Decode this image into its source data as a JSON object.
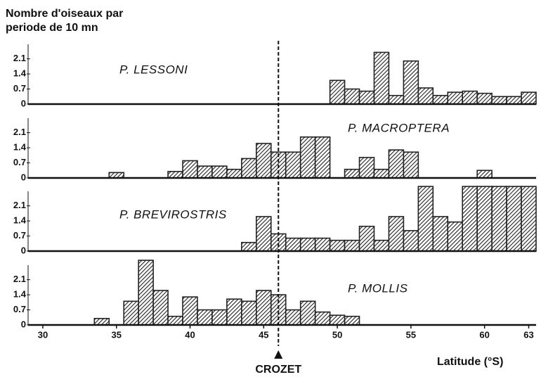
{
  "chart_data": [
    {
      "type": "histogram",
      "title": [
        "Nombre d'oiseaux par",
        "periode de 10 mn"
      ],
      "label": "P. LESSONI",
      "bins": [
        33.5,
        34.5,
        35.5,
        36.5,
        37.5,
        38.5,
        39.5,
        40.5,
        41.5,
        42.5,
        43.5,
        44.5,
        45.5,
        46.5,
        47.5,
        48.5,
        49.5,
        50.5,
        51.5,
        52.5,
        53.5,
        54.5,
        55.5,
        56.5,
        57.5,
        58.5,
        59.5,
        60.5,
        61.5,
        62.5,
        63.5
      ],
      "values": [
        0,
        0,
        0,
        0,
        0,
        0,
        0,
        0,
        0,
        0,
        0,
        0,
        0,
        0,
        0,
        0,
        1.1,
        0.7,
        0.6,
        2.4,
        0.4,
        2.0,
        0.75,
        0.4,
        0.55,
        0.6,
        0.5,
        0.35,
        0.35,
        0.55
      ],
      "color": "#222222",
      "xlim": [
        29,
        63.5
      ],
      "ylim": [
        0,
        3.1
      ],
      "yticks": [
        0,
        0.7,
        1.4,
        2.1
      ]
    },
    {
      "type": "histogram",
      "label": "P. MACROPTERA",
      "bins": [
        33.5,
        34.5,
        35.5,
        36.5,
        37.5,
        38.5,
        39.5,
        40.5,
        41.5,
        42.5,
        43.5,
        44.5,
        45.5,
        46.5,
        47.5,
        48.5,
        49.5,
        50.5,
        51.5,
        52.5,
        53.5,
        54.5,
        55.5,
        56.5,
        57.5,
        58.5,
        59.5,
        60.5,
        61.5,
        62.5,
        63.5
      ],
      "values": [
        0,
        0.25,
        0,
        0,
        0,
        0.3,
        0.8,
        0.55,
        0.55,
        0.4,
        0.9,
        1.6,
        1.2,
        1.2,
        1.9,
        1.9,
        0,
        0.4,
        0.95,
        0.4,
        1.3,
        1.2,
        0,
        0,
        0,
        0,
        0.35,
        0,
        0,
        0
      ],
      "color": "#222222",
      "xlim": [
        29,
        63.5
      ],
      "ylim": [
        0,
        3.1
      ],
      "yticks": [
        0,
        0.7,
        1.4,
        2.1
      ]
    },
    {
      "type": "histogram",
      "label": "P. BREVIROSTRIS",
      "bins": [
        33.5,
        34.5,
        35.5,
        36.5,
        37.5,
        38.5,
        39.5,
        40.5,
        41.5,
        42.5,
        43.5,
        44.5,
        45.5,
        46.5,
        47.5,
        48.5,
        49.5,
        50.5,
        51.5,
        52.5,
        53.5,
        54.5,
        55.5,
        56.5,
        57.5,
        58.5,
        59.5,
        60.5,
        61.5,
        62.5,
        63.5
      ],
      "values": [
        0,
        0,
        0,
        0,
        0,
        0,
        0,
        0,
        0,
        0,
        0.4,
        1.6,
        0.8,
        0.6,
        0.6,
        0.6,
        0.5,
        0.5,
        1.15,
        0.5,
        1.6,
        0.95,
        3.0,
        1.6,
        1.35,
        3.0,
        3.0,
        3.0,
        3.0,
        3.0
      ],
      "color": "#222222",
      "xlim": [
        29,
        63.5
      ],
      "ylim": [
        0,
        3.1
      ],
      "yticks": [
        0,
        0.7,
        1.4,
        2.1
      ]
    },
    {
      "type": "histogram",
      "label": "P. MOLLIS",
      "bins": [
        33.5,
        34.5,
        35.5,
        36.5,
        37.5,
        38.5,
        39.5,
        40.5,
        41.5,
        42.5,
        43.5,
        44.5,
        45.5,
        46.5,
        47.5,
        48.5,
        49.5,
        50.5,
        51.5,
        52.5,
        53.5,
        54.5,
        55.5,
        56.5,
        57.5,
        58.5,
        59.5,
        60.5,
        61.5,
        62.5,
        63.5
      ],
      "values": [
        0.3,
        0,
        1.1,
        3.0,
        1.6,
        0.4,
        1.3,
        0.7,
        0.7,
        1.2,
        1.1,
        1.6,
        1.4,
        0.7,
        1.1,
        0.6,
        0.45,
        0.4,
        0,
        0,
        0,
        0,
        0,
        0,
        0,
        0,
        0,
        0,
        0,
        0
      ],
      "color": "#222222",
      "xlim": [
        29,
        63.5
      ],
      "ylim": [
        0,
        3.1
      ],
      "yticks": [
        0,
        0.7,
        1.4,
        2.1
      ],
      "xticks": [
        30,
        35,
        40,
        45,
        50,
        55,
        60,
        63
      ],
      "xlabel": "Latitude (°S)",
      "annotation": {
        "text": "CROZET",
        "x": 46
      }
    }
  ]
}
